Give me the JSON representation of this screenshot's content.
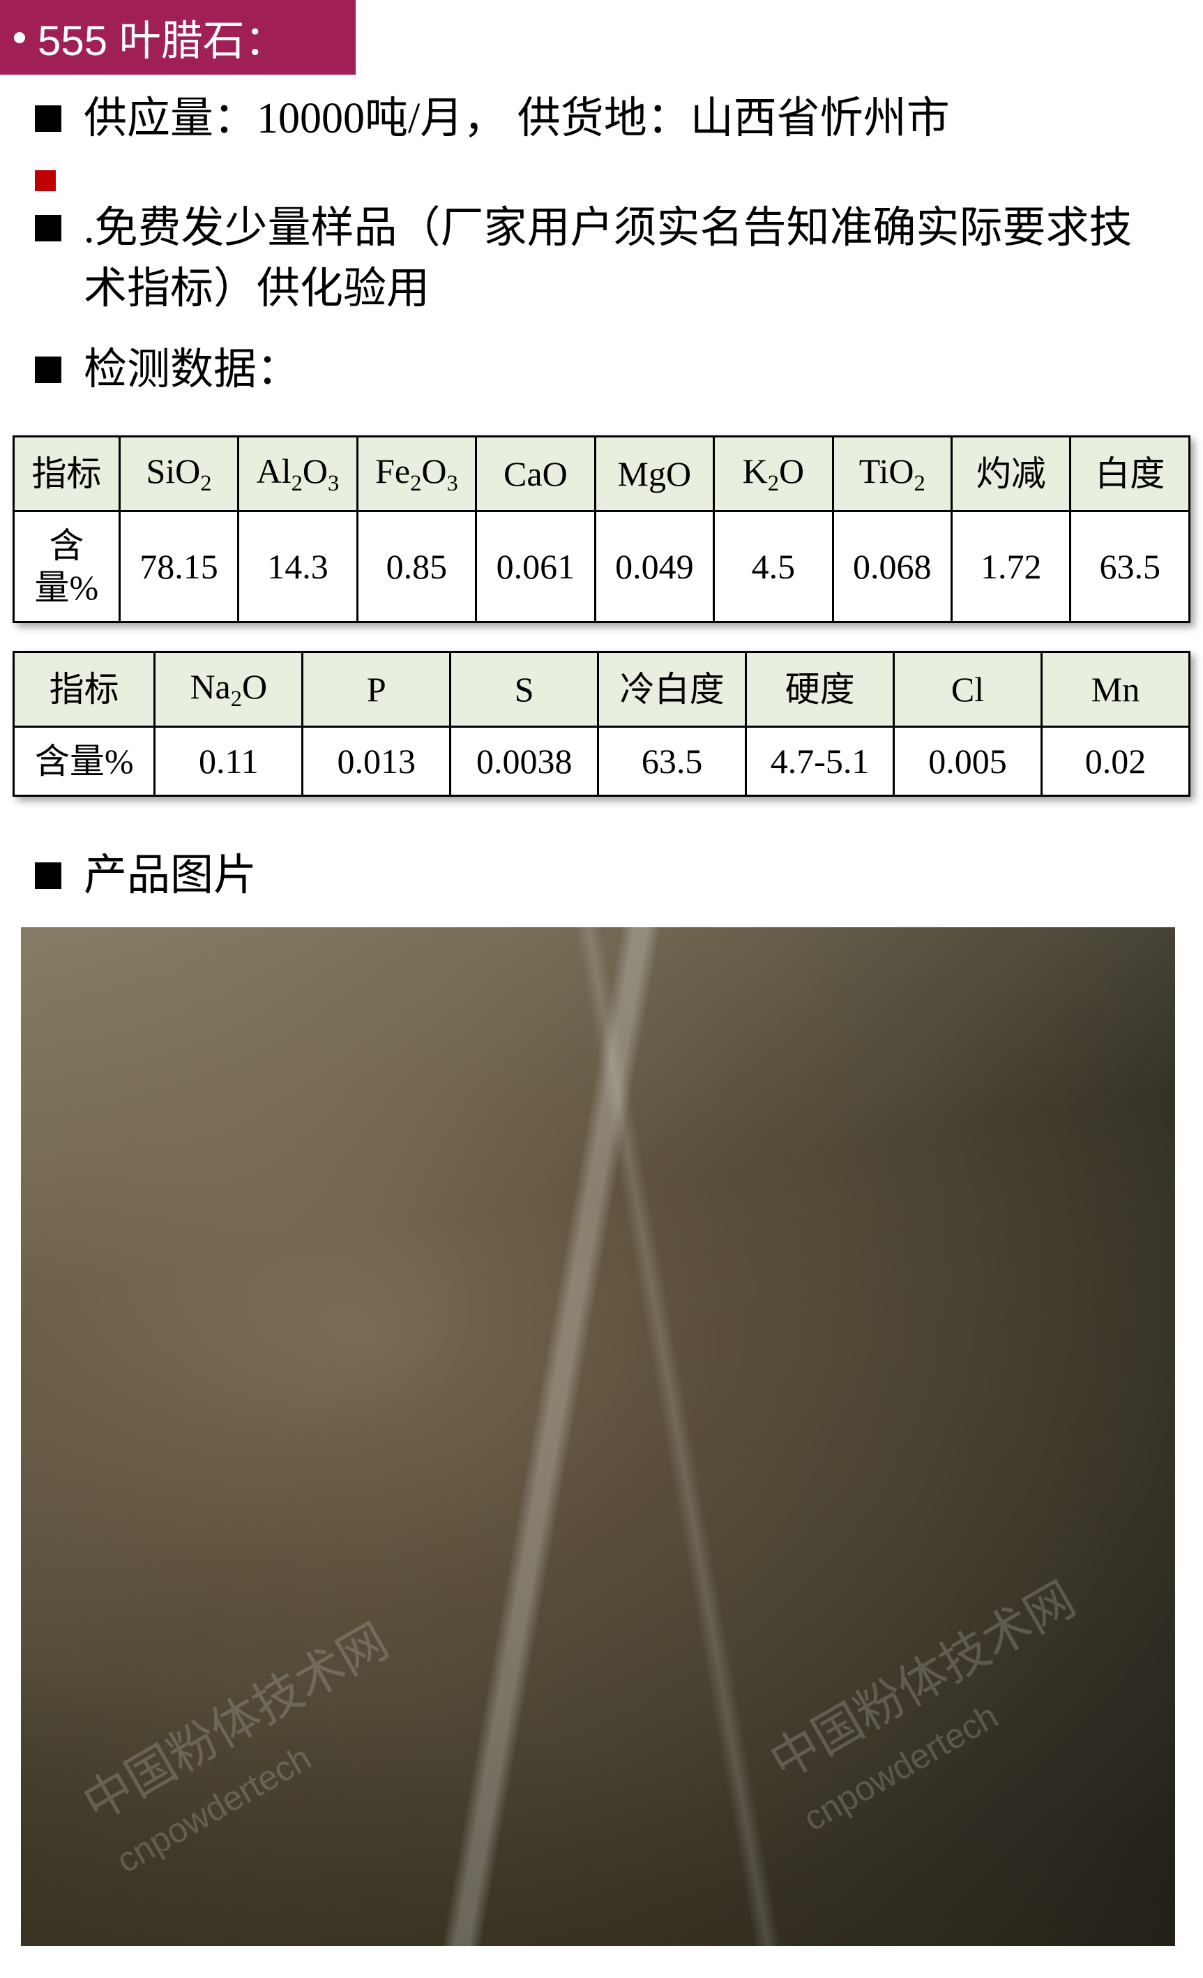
{
  "header": {
    "title": "555 叶腊石："
  },
  "info": {
    "supply_line": "供应量：10000吨/月，  供货地：山西省忻州市",
    "sample_line": ".免费发少量样品（厂家用户须实名告知准确实际要求技术指标）供化验用",
    "data_label": "检测数据：",
    "photo_label": "产品图片"
  },
  "table1": {
    "header_row_label": "指标",
    "value_row_label": "含量%",
    "columns": [
      {
        "label_html": "SiO<sub>2</sub>",
        "value": "78.15"
      },
      {
        "label_html": "Al<sub>2</sub>O<sub>3</sub>",
        "value": "14.3"
      },
      {
        "label_html": "Fe<sub>2</sub>O<sub>3</sub>",
        "value": "0.85"
      },
      {
        "label_html": "CaO",
        "value": "0.061"
      },
      {
        "label_html": "MgO",
        "value": "0.049"
      },
      {
        "label_html": "K<sub>2</sub>O",
        "value": "4.5"
      },
      {
        "label_html": "TiO<sub>2</sub>",
        "value": "0.068"
      },
      {
        "label_html": "灼减",
        "value": "1.72"
      },
      {
        "label_html": "白度",
        "value": "63.5"
      }
    ],
    "header_bg": "#e9efde",
    "border_color": "#000000"
  },
  "table2": {
    "header_row_label": "指标",
    "value_row_label": "含量%",
    "columns": [
      {
        "label_html": "Na<sub>2</sub>O",
        "value": "0.11"
      },
      {
        "label_html": "P",
        "value": "0.013"
      },
      {
        "label_html": "S",
        "value": "0.0038"
      },
      {
        "label_html": "冷白度",
        "value": "63.5"
      },
      {
        "label_html": "硬度",
        "value": "4.7-5.1"
      },
      {
        "label_html": "Cl",
        "value": "0.005"
      },
      {
        "label_html": "Mn",
        "value": "0.02"
      }
    ],
    "header_bg": "#e9efde",
    "border_color": "#000000"
  },
  "watermarks": [
    {
      "text": "中国粉体技术网",
      "sub": "cnpowdertech"
    }
  ],
  "colors": {
    "header_band": "#a02055",
    "bullet_black": "#000000",
    "bullet_red": "#c00000",
    "page_bg": "#ffffff"
  }
}
